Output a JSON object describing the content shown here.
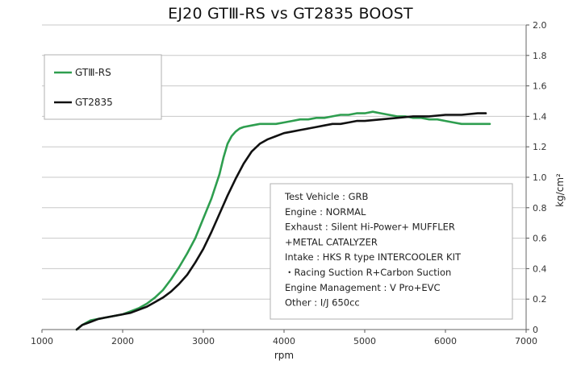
{
  "chart_data": {
    "type": "line",
    "title": "EJ20 GTⅢ-RS vs GT2835 BOOST",
    "xlabel": "rpm",
    "ylabel": "kg/cm²",
    "xlim": [
      1000,
      7000
    ],
    "ylim": [
      0,
      2.0
    ],
    "x_ticks": [
      "1000",
      "2000",
      "3000",
      "4000",
      "5000",
      "6000",
      "7000"
    ],
    "y_ticks": [
      "0",
      "0.2",
      "0.4",
      "0.6",
      "0.8",
      "1.0",
      "1.2",
      "1.4",
      "1.6",
      "1.8",
      "2.0"
    ],
    "grid": "horizontal",
    "legend_position": "top-left",
    "series": [
      {
        "name": "GTⅢ-RS",
        "color": "#2e9e4f",
        "points": [
          [
            1430,
            0.0
          ],
          [
            1500,
            0.03
          ],
          [
            1600,
            0.06
          ],
          [
            1700,
            0.07
          ],
          [
            1800,
            0.08
          ],
          [
            1900,
            0.09
          ],
          [
            2000,
            0.1
          ],
          [
            2100,
            0.12
          ],
          [
            2200,
            0.14
          ],
          [
            2300,
            0.17
          ],
          [
            2400,
            0.21
          ],
          [
            2500,
            0.26
          ],
          [
            2600,
            0.33
          ],
          [
            2700,
            0.41
          ],
          [
            2800,
            0.5
          ],
          [
            2900,
            0.6
          ],
          [
            3000,
            0.73
          ],
          [
            3100,
            0.86
          ],
          [
            3200,
            1.02
          ],
          [
            3250,
            1.13
          ],
          [
            3300,
            1.22
          ],
          [
            3350,
            1.27
          ],
          [
            3400,
            1.3
          ],
          [
            3450,
            1.32
          ],
          [
            3500,
            1.33
          ],
          [
            3600,
            1.34
          ],
          [
            3700,
            1.35
          ],
          [
            3800,
            1.35
          ],
          [
            3900,
            1.35
          ],
          [
            4000,
            1.36
          ],
          [
            4100,
            1.37
          ],
          [
            4200,
            1.38
          ],
          [
            4300,
            1.38
          ],
          [
            4400,
            1.39
          ],
          [
            4500,
            1.39
          ],
          [
            4600,
            1.4
          ],
          [
            4700,
            1.41
          ],
          [
            4800,
            1.41
          ],
          [
            4900,
            1.42
          ],
          [
            5000,
            1.42
          ],
          [
            5100,
            1.43
          ],
          [
            5200,
            1.42
          ],
          [
            5300,
            1.41
          ],
          [
            5400,
            1.4
          ],
          [
            5500,
            1.4
          ],
          [
            5600,
            1.39
          ],
          [
            5700,
            1.39
          ],
          [
            5800,
            1.38
          ],
          [
            5900,
            1.38
          ],
          [
            6000,
            1.37
          ],
          [
            6100,
            1.36
          ],
          [
            6200,
            1.35
          ],
          [
            6300,
            1.35
          ],
          [
            6400,
            1.35
          ],
          [
            6550,
            1.35
          ]
        ]
      },
      {
        "name": "GT2835",
        "color": "#111111",
        "points": [
          [
            1430,
            0.0
          ],
          [
            1500,
            0.03
          ],
          [
            1600,
            0.05
          ],
          [
            1700,
            0.07
          ],
          [
            1800,
            0.08
          ],
          [
            1900,
            0.09
          ],
          [
            2000,
            0.1
          ],
          [
            2100,
            0.11
          ],
          [
            2200,
            0.13
          ],
          [
            2300,
            0.15
          ],
          [
            2400,
            0.18
          ],
          [
            2500,
            0.21
          ],
          [
            2600,
            0.25
          ],
          [
            2700,
            0.3
          ],
          [
            2800,
            0.36
          ],
          [
            2900,
            0.44
          ],
          [
            3000,
            0.53
          ],
          [
            3100,
            0.64
          ],
          [
            3200,
            0.76
          ],
          [
            3300,
            0.88
          ],
          [
            3400,
            0.99
          ],
          [
            3500,
            1.09
          ],
          [
            3600,
            1.17
          ],
          [
            3700,
            1.22
          ],
          [
            3800,
            1.25
          ],
          [
            3900,
            1.27
          ],
          [
            4000,
            1.29
          ],
          [
            4100,
            1.3
          ],
          [
            4200,
            1.31
          ],
          [
            4300,
            1.32
          ],
          [
            4400,
            1.33
          ],
          [
            4500,
            1.34
          ],
          [
            4600,
            1.35
          ],
          [
            4700,
            1.35
          ],
          [
            4800,
            1.36
          ],
          [
            4900,
            1.37
          ],
          [
            5000,
            1.37
          ],
          [
            5200,
            1.38
          ],
          [
            5400,
            1.39
          ],
          [
            5600,
            1.4
          ],
          [
            5800,
            1.4
          ],
          [
            6000,
            1.41
          ],
          [
            6200,
            1.41
          ],
          [
            6400,
            1.42
          ],
          [
            6500,
            1.42
          ]
        ]
      }
    ],
    "annotation_lines": [
      "Test Vehicle : GRB",
      "Engine : NORMAL",
      "Exhaust : Silent Hi-Power+ MUFFLER",
      "+METAL CATALYZER",
      "Intake : HKS R type INTERCOOLER KIT",
      "・Racing Suction R+Carbon Suction",
      "Engine Management : V Pro+EVC",
      "Other : I/J 650cc"
    ]
  }
}
